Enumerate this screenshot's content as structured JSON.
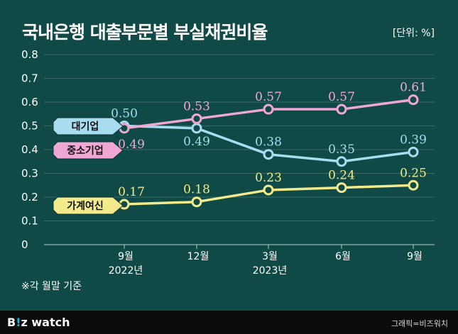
{
  "header": {
    "title": "국내은행 대출부문별 부실채권비율",
    "unit": "[단위: %]"
  },
  "note": "※각 월말 기준",
  "footer": {
    "logo_prefix": "B",
    "logo_accent": "!",
    "logo_mid": "z",
    "logo_suffix": " watch",
    "credit": "그래픽=비즈워치"
  },
  "colors": {
    "background": "#0f4a46",
    "grid": "#3d6b67",
    "axis": "#b9ccca",
    "text": "#ffffff",
    "large_corp": "#a7dcf1",
    "sme": "#f1a7d3",
    "household": "#f3eb8b",
    "footer": "#0b0b0b"
  },
  "chart_data": {
    "type": "line",
    "x_labels": [
      "9월\n2022년",
      "12월",
      "3월\n2023년",
      "6월",
      "9월"
    ],
    "ylim": [
      0,
      0.8
    ],
    "yticks": [
      "0",
      "0.1",
      "0.2",
      "0.3",
      "0.4",
      "0.5",
      "0.6",
      "0.7",
      "0.8"
    ],
    "grid": true,
    "series": [
      {
        "name": "대기업",
        "values": [
          0.5,
          0.49,
          0.38,
          0.35,
          0.39
        ],
        "color": "#a7dcf1"
      },
      {
        "name": "중소기업",
        "values": [
          0.49,
          0.53,
          0.57,
          0.57,
          0.61
        ],
        "color": "#f1a7d3"
      },
      {
        "name": "가계여신",
        "values": [
          0.17,
          0.18,
          0.23,
          0.24,
          0.25
        ],
        "color": "#f3eb8b"
      }
    ],
    "data_labels": [
      [
        "0.50",
        "0.49",
        "0.38",
        "0.35",
        "0.39"
      ],
      [
        "0.49",
        "0.53",
        "0.57",
        "0.57",
        "0.61"
      ],
      [
        "0.17",
        "0.18",
        "0.23",
        "0.24",
        "0.25"
      ]
    ]
  }
}
